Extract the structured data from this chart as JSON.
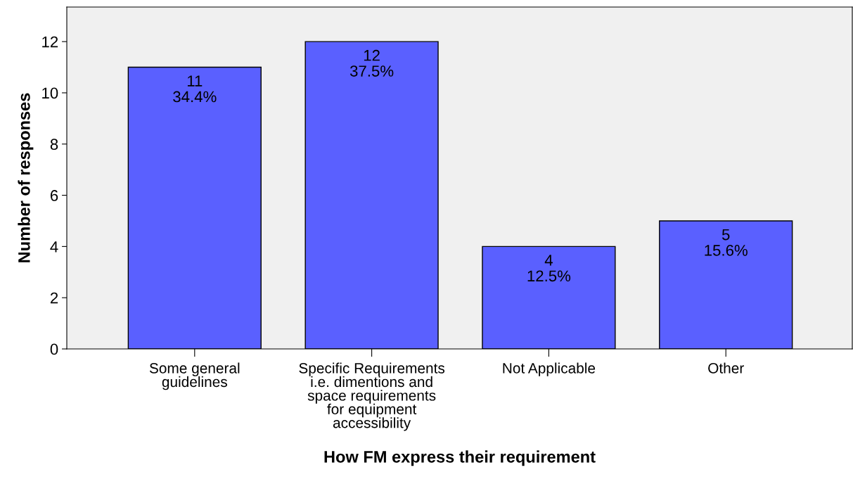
{
  "chart_data": {
    "type": "bar",
    "xlabel": "How FM express their requirement",
    "ylabel": "Number of responses",
    "categories": [
      "Some general\nguidelines",
      "Specific Requirements\ni.e. dimentions and\nspace requirements\nfor equipment\naccessibility",
      "Not Applicable",
      "Other"
    ],
    "values": [
      11,
      12,
      4,
      5
    ],
    "color": "#5a60ff",
    "value_labels": [
      "11\n34.4%",
      "12\n37.5%",
      "4\n12.5%",
      "5\n15.6%"
    ],
    "ylim": [
      0,
      13.35
    ],
    "yticks": [
      0,
      2,
      4,
      6,
      8,
      10,
      12
    ],
    "grid": false,
    "legend": false
  }
}
